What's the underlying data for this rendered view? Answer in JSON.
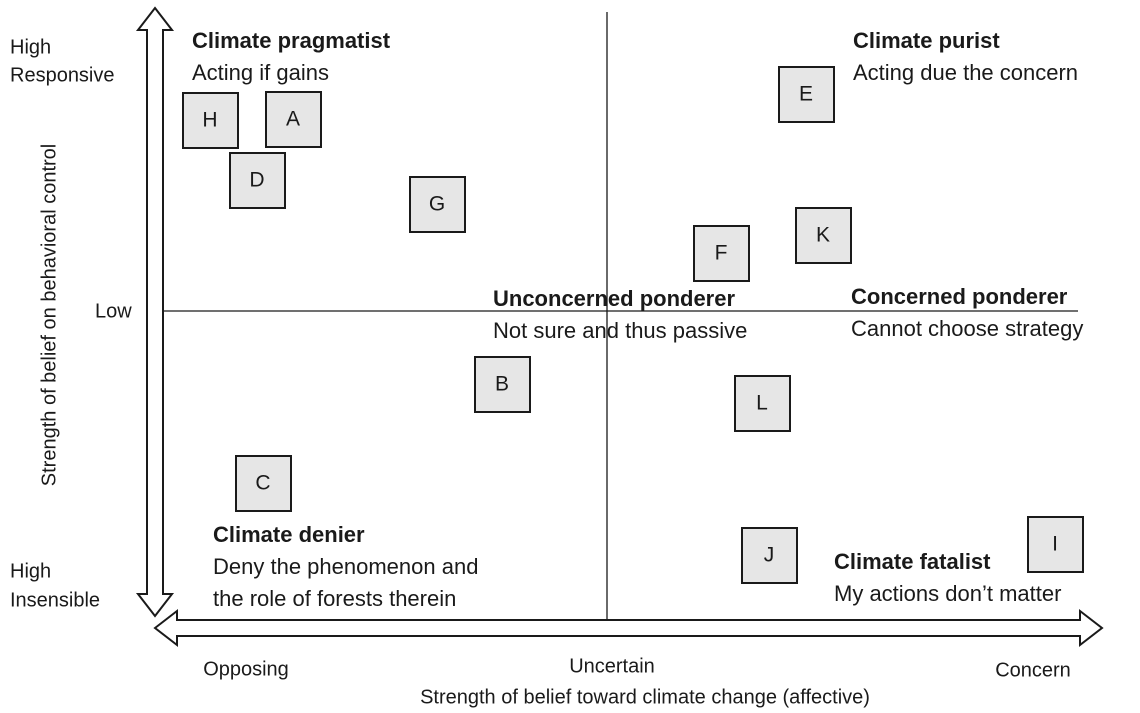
{
  "y_axis": {
    "title": "Strength of belief on behavioral control",
    "top": [
      "High",
      "Responsive"
    ],
    "middle": "Low",
    "bottom": [
      "High",
      "Insensible"
    ]
  },
  "x_axis": {
    "title": "Strength of belief toward climate change (affective)",
    "left": "Opposing",
    "middle": "Uncertain",
    "right": "Concern"
  },
  "quadrants": [
    {
      "title": "Climate pragmatist",
      "description": [
        "Acting if gains"
      ]
    },
    {
      "title": "Climate purist",
      "description": [
        "Acting due the concern"
      ]
    },
    {
      "title": "Unconcerned ponderer",
      "description": [
        "Not sure and thus passive"
      ]
    },
    {
      "title": "Concerned ponderer",
      "description": [
        "Cannot choose strategy"
      ]
    },
    {
      "title": "Climate denier",
      "description": [
        "Deny the phenomenon and",
        "the role of forests therein"
      ]
    },
    {
      "title": "Climate fatalist",
      "description": [
        "My actions don’t matter"
      ]
    }
  ],
  "boxes": [
    "H",
    "A",
    "D",
    "G",
    "E",
    "F",
    "K",
    "B",
    "L",
    "C",
    "J",
    "I"
  ]
}
